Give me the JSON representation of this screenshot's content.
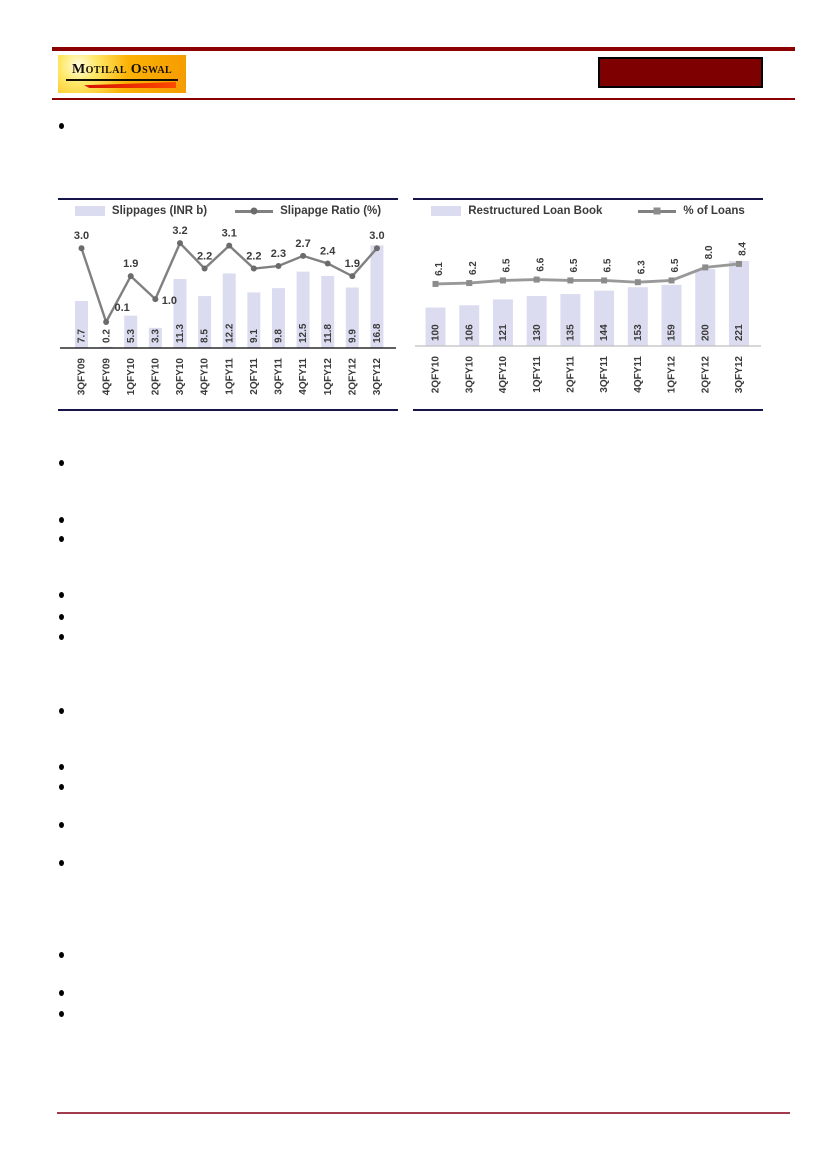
{
  "header": {
    "logo_text": "Motilal Oswal",
    "colors": {
      "rule": "#8B0000",
      "title_box": "#7E0000",
      "logo_bg": "#F9A602",
      "swoosh": "#E01000"
    }
  },
  "bullets": [
    {
      "y": 126
    },
    {
      "y": 463
    },
    {
      "y": 520
    },
    {
      "y": 539
    },
    {
      "y": 595
    },
    {
      "y": 617
    },
    {
      "y": 637
    },
    {
      "y": 711
    },
    {
      "y": 767
    },
    {
      "y": 787
    },
    {
      "y": 825
    },
    {
      "y": 863
    },
    {
      "y": 955
    },
    {
      "y": 993
    },
    {
      "y": 1014
    }
  ],
  "chart_data": [
    {
      "type": "bar",
      "title": "",
      "categories": [
        "3QFY09",
        "4QFY09",
        "1QFY10",
        "2QFY10",
        "3QFY10",
        "4QFY10",
        "1QFY11",
        "2QFY11",
        "3QFY11",
        "4QFY11",
        "1QFY12",
        "2QFY12",
        "3QFY12"
      ],
      "series": [
        {
          "name": "Slippages (INR b)",
          "type": "bar",
          "values": [
            7.7,
            0.2,
            5.3,
            3.3,
            11.3,
            8.5,
            12.2,
            9.1,
            9.8,
            12.5,
            11.8,
            9.9,
            16.8
          ],
          "labels": [
            "7.7",
            "0.2",
            "5.3",
            "3.3",
            "11.3",
            "8.5",
            "12.2",
            "9.1",
            "9.8",
            "12.5",
            "11.8",
            "9.9",
            "16.8"
          ]
        },
        {
          "name": "Slipapge Ratio (%)",
          "type": "line",
          "values": [
            3.0,
            0.1,
            1.9,
            1.0,
            3.2,
            2.2,
            3.1,
            2.2,
            2.3,
            2.7,
            2.4,
            1.9,
            3.0
          ],
          "labels": [
            "3.0",
            "0.1",
            "1.9",
            "1.0",
            "3.2",
            "2.2",
            "3.1",
            "2.2",
            "2.3",
            "2.7",
            "2.4",
            "1.9",
            "3.0"
          ]
        }
      ],
      "bar_ylim": [
        0,
        18
      ],
      "line_ylim": [
        0,
        3.5
      ],
      "legend_position": "top",
      "grid": false,
      "colors": {
        "bar": "#DCDCF0",
        "line": "#808080",
        "marker": "#6B6B6B",
        "axis": "#000000",
        "border": "#15154A",
        "label": "#3B3B3B"
      }
    },
    {
      "type": "bar",
      "title": "",
      "categories": [
        "2QFY10",
        "3QFY10",
        "4QFY10",
        "1QFY11",
        "2QFY11",
        "3QFY11",
        "4QFY11",
        "1QFY12",
        "2QFY12",
        "3QFY12"
      ],
      "series": [
        {
          "name": "Restructured Loan Book",
          "type": "bar",
          "values": [
            100,
            106,
            121,
            130,
            135,
            144,
            153,
            159,
            200,
            221
          ],
          "labels": [
            "100",
            "106",
            "121",
            "130",
            "135",
            "144",
            "153",
            "159",
            "200",
            "221"
          ]
        },
        {
          "name": "% of  Loans",
          "type": "line",
          "values": [
            6.1,
            6.2,
            6.5,
            6.6,
            6.5,
            6.5,
            6.3,
            6.5,
            8.0,
            8.4
          ],
          "labels": [
            "6.1",
            "6.2",
            "6.5",
            "6.6",
            "6.5",
            "6.5",
            "6.3",
            "6.5",
            "8.0",
            "8.4"
          ]
        }
      ],
      "bar_ylim": [
        0,
        260
      ],
      "line_ylim": [
        0,
        16
      ],
      "legend_position": "top",
      "grid": false,
      "colors": {
        "bar": "#DCDCF0",
        "line": "#999999",
        "marker": "#8C8C8C",
        "axis": "#BFBFBF",
        "border": "#15154A",
        "label": "#3B3B3B"
      }
    }
  ]
}
